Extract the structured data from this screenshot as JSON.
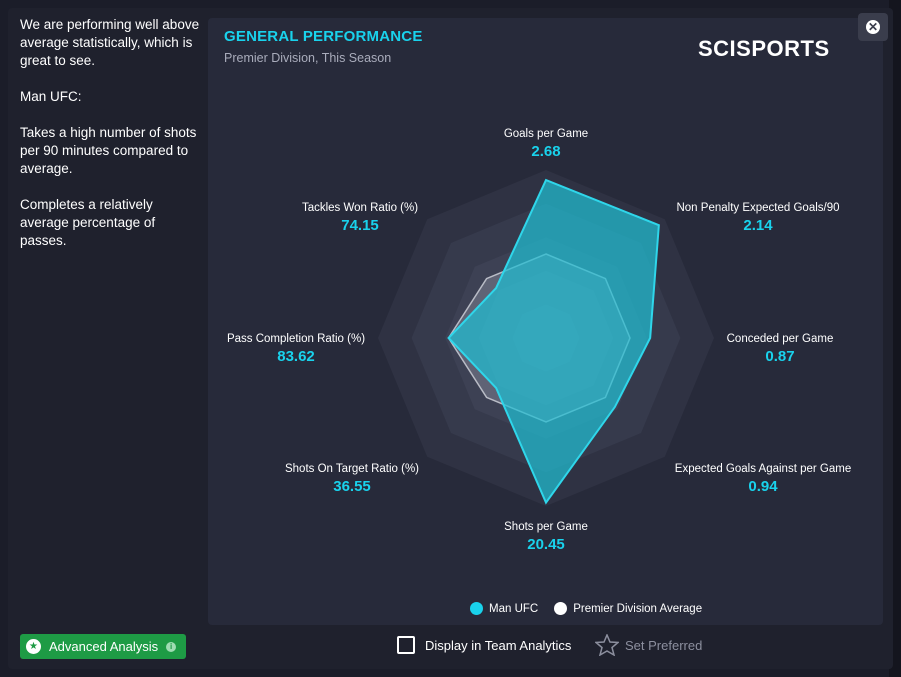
{
  "sidebar": {
    "paragraphs": [
      "We are performing well above average statistically, which is great to see.",
      "Man UFC:",
      "Takes a high number of shots per 90 minutes compared to average.",
      "Completes a relatively average percentage of passes."
    ]
  },
  "panel": {
    "title": "GENERAL PERFORMANCE",
    "subtitle": "Premier Division, This Season",
    "brand": "SCISPORTS"
  },
  "close_icon": "close-icon",
  "chart_data": {
    "type": "radar",
    "axes": [
      {
        "label": "Goals per Game",
        "value": "2.68"
      },
      {
        "label": "Non Penalty Expected Goals/90",
        "value": "2.14"
      },
      {
        "label": "Conceded per Game",
        "value": "0.87"
      },
      {
        "label": "Expected Goals Against per Game",
        "value": "0.94"
      },
      {
        "label": "Shots per Game",
        "value": "20.45"
      },
      {
        "label": "Shots On Target Ratio (%)",
        "value": "36.55"
      },
      {
        "label": "Pass Completion Ratio (%)",
        "value": "83.62"
      },
      {
        "label": "Tackles Won Ratio (%)",
        "value": "74.15"
      }
    ],
    "series": [
      {
        "name": "Man UFC",
        "color": "#27b6c9",
        "levels": [
          0.94,
          0.95,
          0.62,
          0.58,
          0.98,
          0.42,
          0.58,
          0.42
        ]
      },
      {
        "name": "Premier Division Average",
        "color": "#ffffff",
        "levels": [
          0.5,
          0.5,
          0.5,
          0.5,
          0.5,
          0.5,
          0.58,
          0.5
        ]
      }
    ],
    "legend_position": "bottom-center"
  },
  "footer": {
    "advanced_analysis": "Advanced Analysis",
    "display_in_team_analytics": "Display in Team Analytics",
    "set_preferred": "Set Preferred"
  }
}
